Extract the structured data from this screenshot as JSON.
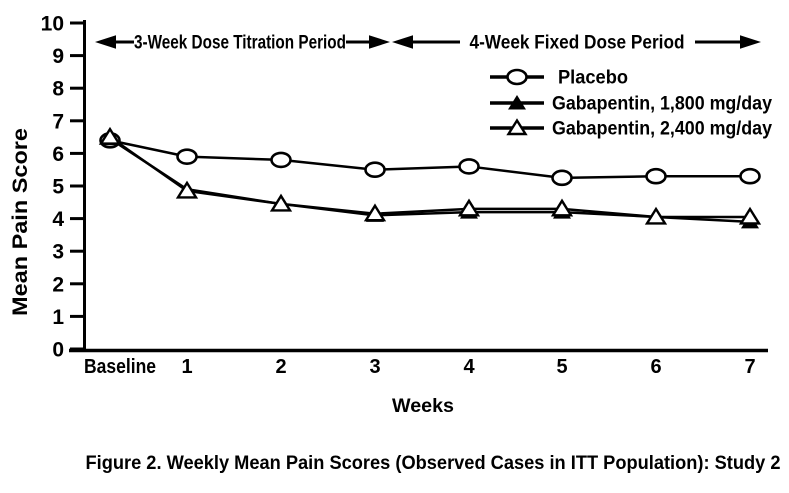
{
  "figure": {
    "caption": "Figure 2. Weekly Mean Pain Scores (Observed Cases in ITT Population): Study 2"
  },
  "chart_data": {
    "type": "line",
    "title": "Figure 2. Weekly Mean Pain Scores (Observed Cases in ITT Population): Study 2",
    "xlabel": "Weeks",
    "ylabel": "Mean Pain Score",
    "categories": [
      "Baseline",
      "1",
      "2",
      "3",
      "4",
      "5",
      "6",
      "7"
    ],
    "ylim": [
      0,
      10
    ],
    "yticks": [
      0,
      1,
      2,
      3,
      4,
      5,
      6,
      7,
      8,
      9,
      10
    ],
    "grid": false,
    "legend_position": "top-right-inside",
    "annotations": [
      {
        "label": "3-Week Dose Titration Period",
        "arrows": "double-headed",
        "span": "Baseline to Week 3"
      },
      {
        "label": "4-Week Fixed Dose Period",
        "arrows": "double-headed",
        "span": "Week 3 to Week 7"
      }
    ],
    "series": [
      {
        "name": "Placebo",
        "marker": "open-circle",
        "values": [
          6.4,
          5.9,
          5.8,
          5.5,
          5.6,
          5.25,
          5.3,
          5.3
        ]
      },
      {
        "name": "Gabapentin, 1,800 mg/day",
        "marker": "filled-triangle",
        "values": [
          6.45,
          4.9,
          4.45,
          4.1,
          4.2,
          4.2,
          4.05,
          3.9
        ]
      },
      {
        "name": "Gabapentin, 2,400 mg/day",
        "marker": "open-triangle",
        "values": [
          6.5,
          4.85,
          4.45,
          4.15,
          4.3,
          4.3,
          4.05,
          4.05
        ]
      }
    ],
    "colors": {
      "ink": "#000000",
      "background": "#ffffff"
    }
  }
}
